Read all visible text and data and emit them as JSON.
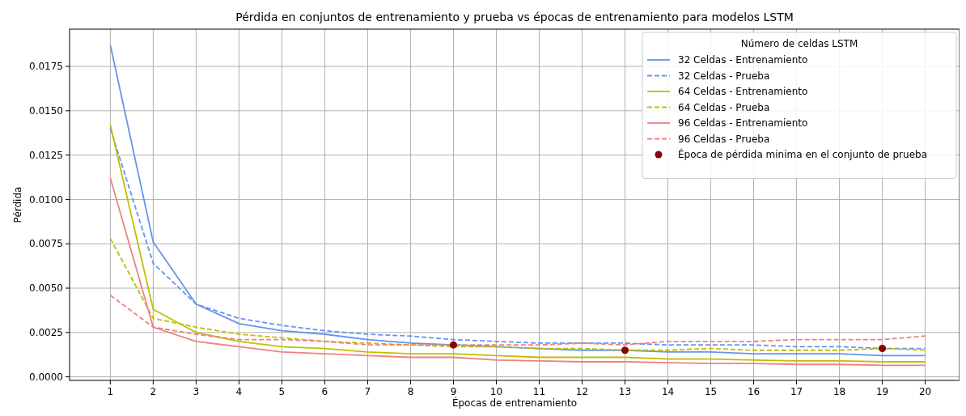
{
  "chart_data": {
    "type": "line",
    "title": "Pérdida en conjuntos de entrenamiento y prueba vs épocas de entrenamiento para modelos LSTM",
    "xlabel": "Épocas de entrenamiento",
    "ylabel": "Pérdida",
    "legend_title": "Número de celdas LSTM",
    "legend": "top right",
    "grid": true,
    "x": [
      1,
      2,
      3,
      4,
      5,
      6,
      7,
      8,
      9,
      10,
      11,
      12,
      13,
      14,
      15,
      16,
      17,
      18,
      19,
      20
    ],
    "xlim": [
      0.05,
      20.8
    ],
    "xticks": [
      1,
      2,
      3,
      4,
      5,
      6,
      7,
      8,
      9,
      10,
      11,
      12,
      13,
      14,
      15,
      16,
      17,
      18,
      19,
      20
    ],
    "ylim": [
      -0.0002,
      0.0196
    ],
    "yticks": [
      {
        "value": 0,
        "label": "0.0000"
      },
      {
        "value": 0.0025,
        "label": "0.0025"
      },
      {
        "value": 0.005,
        "label": "0.0050"
      },
      {
        "value": 0.0075,
        "label": "0.0075"
      },
      {
        "value": 0.01,
        "label": "0.0100"
      },
      {
        "value": 0.0125,
        "label": "0.0125"
      },
      {
        "value": 0.015,
        "label": "0.0150"
      },
      {
        "value": 0.0175,
        "label": "0.0175"
      }
    ],
    "series": [
      {
        "name": "32 Celdas - Entrenamiento",
        "color": "#6495ed",
        "line_style": "solid",
        "marker": "none",
        "values": [
          0.0187,
          0.0076,
          0.0041,
          0.003,
          0.0026,
          0.0024,
          0.0021,
          0.0019,
          0.0018,
          0.0017,
          0.0016,
          0.0015,
          0.0015,
          0.0014,
          0.0014,
          0.0013,
          0.0013,
          0.0013,
          0.0012,
          0.0012
        ]
      },
      {
        "name": "32 Celdas - Prueba",
        "color": "#6495ed",
        "line_style": "dashed",
        "marker": "none",
        "values": [
          0.014,
          0.0064,
          0.0041,
          0.0033,
          0.0029,
          0.0026,
          0.0024,
          0.0023,
          0.0021,
          0.002,
          0.0019,
          0.0019,
          0.0019,
          0.0018,
          0.0018,
          0.0018,
          0.0017,
          0.0017,
          0.0016,
          0.0016
        ]
      },
      {
        "name": "64 Celdas - Entrenamiento",
        "color": "#bfbf00",
        "line_style": "solid",
        "marker": "none",
        "values": [
          0.0142,
          0.0038,
          0.0025,
          0.002,
          0.0017,
          0.0016,
          0.0014,
          0.0013,
          0.0013,
          0.0012,
          0.0011,
          0.0011,
          0.0011,
          0.001,
          0.001,
          0.00095,
          0.0009,
          0.0009,
          0.00085,
          0.00085
        ]
      },
      {
        "name": "64 Celdas - Prueba",
        "color": "#bfbf00",
        "line_style": "dashed",
        "marker": "none",
        "values": [
          0.0078,
          0.0033,
          0.0028,
          0.0024,
          0.0022,
          0.002,
          0.0019,
          0.0018,
          0.0017,
          0.0017,
          0.0016,
          0.0016,
          0.0015,
          0.0015,
          0.0016,
          0.0015,
          0.0015,
          0.0015,
          0.0016,
          0.0015
        ]
      },
      {
        "name": "96 Celdas - Entrenamiento",
        "color": "#f08080",
        "line_style": "solid",
        "marker": "none",
        "values": [
          0.0112,
          0.0028,
          0.002,
          0.0017,
          0.0014,
          0.0013,
          0.0012,
          0.0011,
          0.0011,
          0.00095,
          0.0009,
          0.00085,
          0.00085,
          0.0008,
          0.00075,
          0.00075,
          0.0007,
          0.0007,
          0.00065,
          0.00065
        ]
      },
      {
        "name": "96 Celdas - Prueba",
        "color": "#f08080",
        "line_style": "dashed",
        "marker": "none",
        "values": [
          0.0046,
          0.0028,
          0.0024,
          0.0021,
          0.0021,
          0.002,
          0.0018,
          0.0018,
          0.0018,
          0.0018,
          0.0018,
          0.0019,
          0.0018,
          0.002,
          0.002,
          0.002,
          0.0021,
          0.0021,
          0.0021,
          0.0023
        ]
      },
      {
        "name": "Época de pérdida minima en el conjunto de prueba",
        "type": "scatter",
        "color": "#8b0000",
        "marker": "circle",
        "x": [
          9,
          13,
          19
        ],
        "values": [
          0.0018,
          0.0015,
          0.0016
        ]
      }
    ]
  }
}
